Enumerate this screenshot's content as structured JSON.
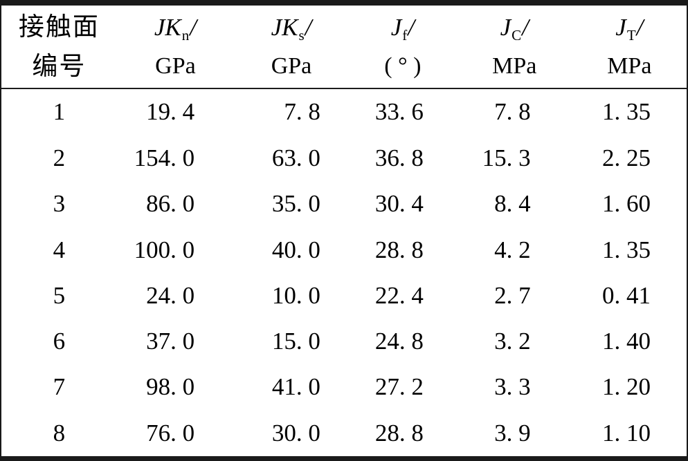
{
  "page": {
    "background": "#ffffff",
    "text_color": "#000000",
    "rule_color": "#1a1a1a"
  },
  "table": {
    "header": {
      "id_col": {
        "line1": "接触面",
        "line2": "编号"
      },
      "param_cols": [
        {
          "symbol": "JK",
          "subscript": "n",
          "slash": "/",
          "unit": "GPa"
        },
        {
          "symbol": "JK",
          "subscript": "s",
          "slash": "/",
          "unit": "GPa"
        },
        {
          "symbol": "J",
          "subscript": "f",
          "slash": "/",
          "unit": "( ° )"
        },
        {
          "symbol": "J",
          "subscript": "C",
          "slash": "/",
          "unit": "MPa"
        },
        {
          "symbol": "J",
          "subscript": "T",
          "slash": "/",
          "unit": "MPa"
        }
      ]
    },
    "rows": [
      [
        "1",
        "19. 4",
        "7. 8",
        "33. 6",
        "7. 8",
        "1. 35"
      ],
      [
        "2",
        "154. 0",
        "63. 0",
        "36. 8",
        "15. 3",
        "2. 25"
      ],
      [
        "3",
        "86. 0",
        "35. 0",
        "30. 4",
        "8. 4",
        "1. 60"
      ],
      [
        "4",
        "100. 0",
        "40. 0",
        "28. 8",
        "4. 2",
        "1. 35"
      ],
      [
        "5",
        "24. 0",
        "10. 0",
        "22. 4",
        "2. 7",
        "0. 41"
      ],
      [
        "6",
        "37. 0",
        "15. 0",
        "24. 8",
        "3. 2",
        "1. 40"
      ],
      [
        "7",
        "98. 0",
        "41. 0",
        "27. 2",
        "3. 3",
        "1. 20"
      ],
      [
        "8",
        "76. 0",
        "30. 0",
        "28. 8",
        "3. 9",
        "1. 10"
      ]
    ]
  }
}
